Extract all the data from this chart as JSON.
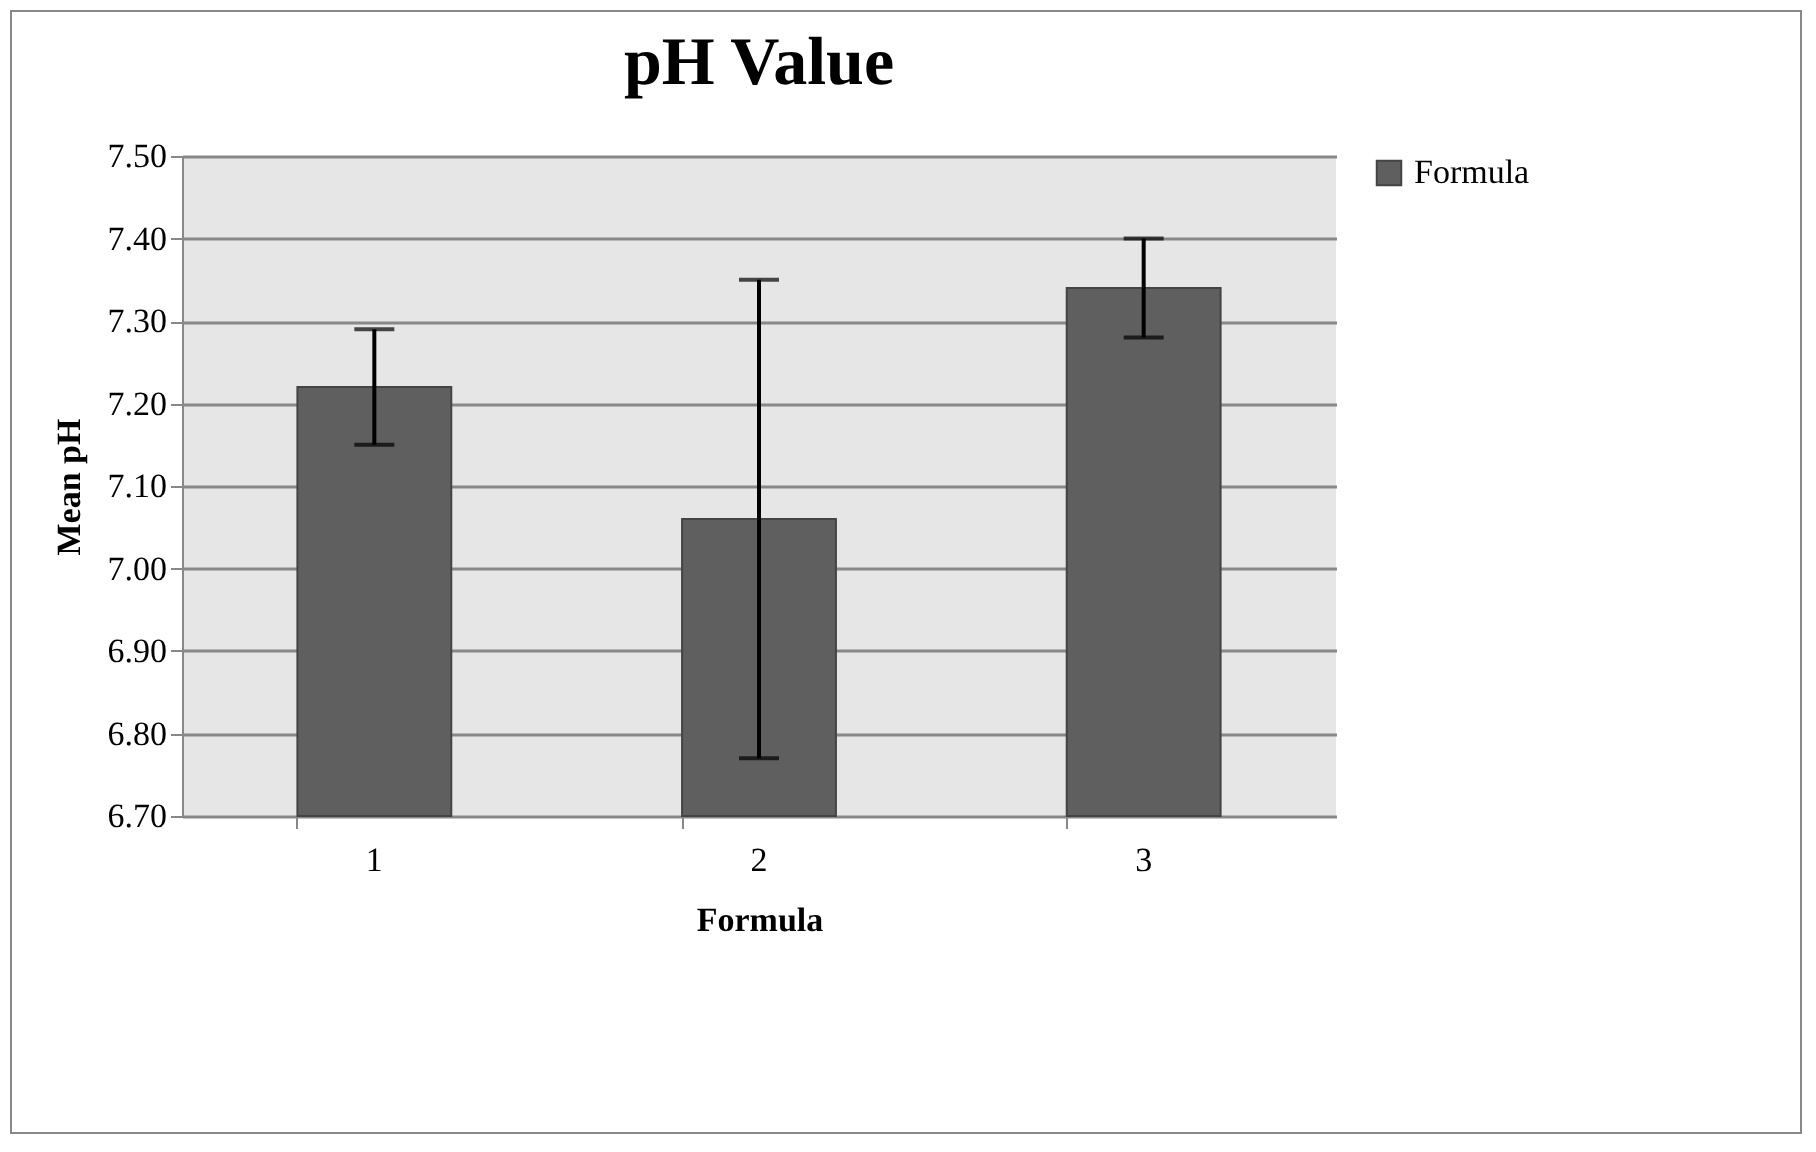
{
  "chart_data": {
    "type": "bar",
    "title": "pH Value",
    "xlabel": "Formula",
    "ylabel": "Mean pH",
    "categories": [
      "1",
      "2",
      "3"
    ],
    "series": [
      {
        "name": "Formula",
        "color": "#5f5f5f",
        "values": [
          7.22,
          7.06,
          7.34
        ],
        "errors": [
          [
            7.15,
            7.29
          ],
          [
            6.77,
            7.35
          ],
          [
            7.28,
            7.4
          ]
        ]
      }
    ],
    "ylim": [
      6.7,
      7.5
    ],
    "yticks": [
      {
        "value": 6.7,
        "label": "6.70"
      },
      {
        "value": 6.8,
        "label": "6.80"
      },
      {
        "value": 6.9,
        "label": "6.90"
      },
      {
        "value": 7.0,
        "label": "7.00"
      },
      {
        "value": 7.1,
        "label": "7.10"
      },
      {
        "value": 7.2,
        "label": "7.20"
      },
      {
        "value": 7.3,
        "label": "7.30"
      },
      {
        "value": 7.4,
        "label": "7.40"
      },
      {
        "value": 7.5,
        "label": "7.50"
      }
    ],
    "grid": "y",
    "legend": "right"
  }
}
